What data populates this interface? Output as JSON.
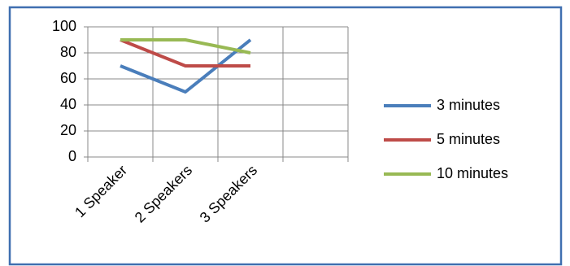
{
  "chart_data": {
    "type": "line",
    "categories": [
      "1 Speaker",
      "2 Speakers",
      "3 Speakers",
      null
    ],
    "series": [
      {
        "name": "3 minutes",
        "color": "#4a7ebb",
        "values": [
          70,
          50,
          90,
          null
        ]
      },
      {
        "name": "5 minutes",
        "color": "#be4b48",
        "values": [
          90,
          70,
          70,
          null
        ]
      },
      {
        "name": "10 minutes",
        "color": "#98b954",
        "values": [
          90,
          90,
          80,
          null
        ]
      }
    ],
    "ylim": [
      0,
      100
    ],
    "yticks": [
      0,
      20,
      40,
      60,
      80,
      100
    ],
    "grid": true,
    "legend": "right"
  }
}
